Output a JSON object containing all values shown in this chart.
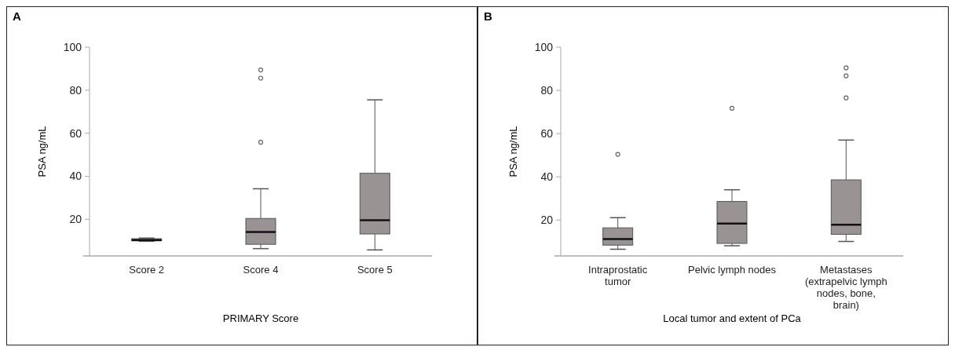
{
  "chart_data": [
    {
      "type": "box",
      "title": "A",
      "xlabel": "PRIMARY Score",
      "ylabel": "PSA ng/mL",
      "color": "#9a9394",
      "categories": [
        "Score 2",
        "Score 4",
        "Score 5"
      ],
      "ylim": [
        3,
        100
      ],
      "yticks": [
        20,
        40,
        60,
        80,
        100
      ],
      "boxes": [
        {
          "low": 9.8,
          "q1": 10,
          "median": 10.4,
          "q3": 11,
          "high": 11.3
        },
        {
          "low": 6.4,
          "q1": 8.4,
          "median": 14.1,
          "q3": 20.4,
          "high": 34.2,
          "outliers": [
            55.8,
            85.6,
            89.4
          ]
        },
        {
          "low": 5.8,
          "q1": 13.2,
          "median": 19.6,
          "q3": 41.4,
          "high": 75.5
        }
      ]
    },
    {
      "type": "box",
      "title": "B",
      "xlabel": "Local tumor and extent of PCa",
      "ylabel": "PSA ng/mL",
      "color": "#9a9394",
      "categories": [
        "Intraprostatic tumor",
        "Pelvic lymph nodes",
        "Metastases (extrapelvic lymph nodes, bone, brain)"
      ],
      "ylim": [
        3.4,
        100
      ],
      "yticks": [
        20,
        40,
        60,
        80,
        100
      ],
      "boxes": [
        {
          "low": 6.5,
          "q1": 8.4,
          "median": 11.2,
          "q3": 16.4,
          "high": 21.1,
          "outliers": [
            50.4
          ]
        },
        {
          "low": 8.1,
          "q1": 9.2,
          "median": 18.4,
          "q3": 28.6,
          "high": 34,
          "outliers": [
            71.7
          ]
        },
        {
          "low": 10.1,
          "q1": 13.4,
          "median": 17.8,
          "q3": 38.6,
          "high": 57,
          "outliers": [
            76.5,
            86.7,
            90.4
          ]
        }
      ]
    }
  ]
}
